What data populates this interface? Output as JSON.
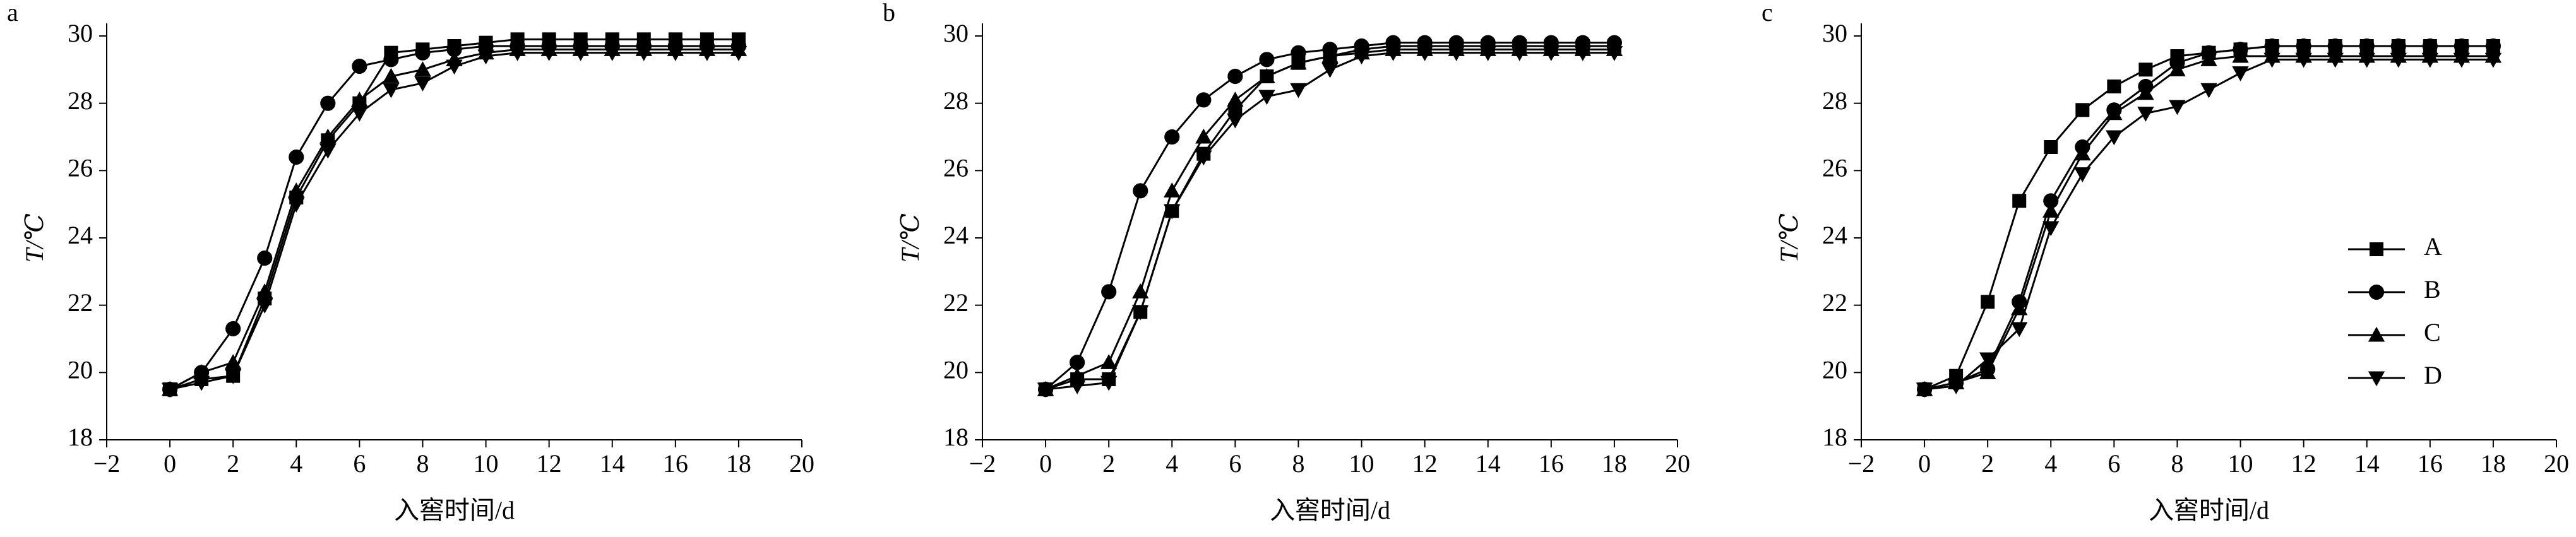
{
  "chart_data": [
    {
      "type": "line",
      "title": "a",
      "ylabel": "T/℃",
      "xlabel": "入窖时间/d",
      "x": [
        0,
        1,
        2,
        3,
        4,
        5,
        6,
        7,
        8,
        9,
        10,
        11,
        12,
        13,
        14,
        15,
        16,
        17,
        18
      ],
      "xlim": [
        -2,
        20
      ],
      "xticks": [
        {
          "value": -2,
          "label": "−2"
        },
        0,
        2,
        4,
        6,
        8,
        10,
        12,
        14,
        16,
        18,
        20
      ],
      "ylim": [
        18,
        30
      ],
      "yticks": [
        18,
        20,
        22,
        24,
        26,
        28,
        30
      ],
      "series": [
        {
          "marker": "square",
          "color": "#000000",
          "values": [
            19.5,
            19.8,
            19.9,
            22.2,
            25.2,
            26.9,
            28.0,
            29.5,
            29.6,
            29.7,
            29.8,
            29.9,
            29.9,
            29.9,
            29.9,
            29.9,
            29.9,
            29.9,
            29.9
          ]
        },
        {
          "marker": "circle",
          "color": "#000000",
          "values": [
            19.5,
            20.0,
            21.3,
            23.4,
            26.4,
            28.0,
            29.1,
            29.3,
            29.5,
            29.6,
            29.7,
            29.7,
            29.7,
            29.7,
            29.7,
            29.7,
            29.7,
            29.7,
            29.7
          ]
        },
        {
          "marker": "triangle-up",
          "color": "#000000",
          "values": [
            19.5,
            20.0,
            20.3,
            22.4,
            25.4,
            27.0,
            28.1,
            28.8,
            29.0,
            29.3,
            29.5,
            29.6,
            29.6,
            29.6,
            29.6,
            29.6,
            29.6,
            29.6,
            29.6
          ]
        },
        {
          "marker": "triangle-down",
          "color": "#000000",
          "values": [
            19.5,
            19.7,
            19.9,
            22.0,
            25.0,
            26.6,
            27.7,
            28.4,
            28.6,
            29.1,
            29.4,
            29.5,
            29.5,
            29.5,
            29.5,
            29.5,
            29.5,
            29.5,
            29.5
          ]
        }
      ]
    },
    {
      "type": "line",
      "title": "b",
      "ylabel": "T/℃",
      "xlabel": "入窖时间/d",
      "x": [
        0,
        1,
        2,
        3,
        4,
        5,
        6,
        7,
        8,
        9,
        10,
        11,
        12,
        13,
        14,
        15,
        16,
        17,
        18
      ],
      "xlim": [
        -2,
        20
      ],
      "xticks": [
        {
          "value": -2,
          "label": "−2"
        },
        0,
        2,
        4,
        6,
        8,
        10,
        12,
        14,
        16,
        18,
        20
      ],
      "ylim": [
        18,
        30
      ],
      "yticks": [
        18,
        20,
        22,
        24,
        26,
        28,
        30
      ],
      "series": [
        {
          "marker": "square",
          "color": "#000000",
          "values": [
            19.5,
            19.8,
            19.8,
            21.8,
            24.8,
            26.5,
            27.8,
            28.8,
            29.2,
            29.4,
            29.6,
            29.7,
            29.7,
            29.7,
            29.7,
            29.7,
            29.7,
            29.7,
            29.7
          ]
        },
        {
          "marker": "circle",
          "color": "#000000",
          "values": [
            19.5,
            20.3,
            22.4,
            25.4,
            27.0,
            28.1,
            28.8,
            29.3,
            29.5,
            29.6,
            29.7,
            29.8,
            29.8,
            29.8,
            29.8,
            29.8,
            29.8,
            29.8,
            29.8
          ]
        },
        {
          "marker": "triangle-up",
          "color": "#000000",
          "values": [
            19.5,
            19.9,
            20.3,
            22.4,
            25.4,
            27.0,
            28.1,
            28.8,
            29.2,
            29.4,
            29.5,
            29.6,
            29.6,
            29.6,
            29.6,
            29.6,
            29.6,
            29.6,
            29.6
          ]
        },
        {
          "marker": "triangle-down",
          "color": "#000000",
          "values": [
            19.5,
            19.6,
            19.7,
            21.8,
            24.8,
            26.4,
            27.5,
            28.2,
            28.4,
            29.0,
            29.4,
            29.5,
            29.5,
            29.5,
            29.5,
            29.5,
            29.5,
            29.5,
            29.5
          ]
        }
      ]
    },
    {
      "type": "line",
      "title": "c",
      "ylabel": "T/℃",
      "xlabel": "入窖时间/d",
      "x": [
        0,
        1,
        2,
        3,
        4,
        5,
        6,
        7,
        8,
        9,
        10,
        11,
        12,
        13,
        14,
        15,
        16,
        17,
        18
      ],
      "xlim": [
        -2,
        20
      ],
      "xticks": [
        {
          "value": -2,
          "label": "−2"
        },
        0,
        2,
        4,
        6,
        8,
        10,
        12,
        14,
        16,
        18,
        20
      ],
      "ylim": [
        18,
        30
      ],
      "yticks": [
        18,
        20,
        22,
        24,
        26,
        28,
        30
      ],
      "legend": "right",
      "series": [
        {
          "name": "A",
          "marker": "square",
          "color": "#000000",
          "values": [
            19.5,
            19.9,
            22.1,
            25.1,
            26.7,
            27.8,
            28.5,
            29.0,
            29.4,
            29.5,
            29.6,
            29.7,
            29.7,
            29.7,
            29.7,
            29.7,
            29.7,
            29.7,
            29.7
          ]
        },
        {
          "name": "B",
          "marker": "circle",
          "color": "#000000",
          "values": [
            19.5,
            19.7,
            20.1,
            22.1,
            25.1,
            26.7,
            27.8,
            28.5,
            29.2,
            29.5,
            29.6,
            29.7,
            29.7,
            29.7,
            29.7,
            29.7,
            29.7,
            29.7,
            29.7
          ]
        },
        {
          "name": "C",
          "marker": "triangle-up",
          "color": "#000000",
          "values": [
            19.5,
            19.7,
            20.0,
            21.9,
            24.8,
            26.5,
            27.7,
            28.3,
            29.0,
            29.3,
            29.4,
            29.4,
            29.4,
            29.4,
            29.4,
            29.4,
            29.4,
            29.4,
            29.4
          ]
        },
        {
          "name": "D",
          "marker": "triangle-down",
          "color": "#000000",
          "values": [
            19.5,
            19.6,
            20.4,
            21.3,
            24.3,
            25.9,
            27.0,
            27.7,
            27.9,
            28.4,
            28.9,
            29.3,
            29.3,
            29.3,
            29.3,
            29.3,
            29.3,
            29.3,
            29.3
          ]
        }
      ]
    }
  ]
}
